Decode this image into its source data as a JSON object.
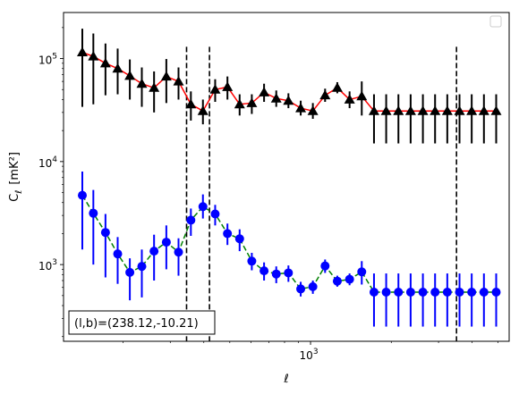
{
  "chart_data": {
    "type": "scatter",
    "title": "",
    "xlabel": "ℓ",
    "ylabel_main": "C",
    "ylabel_sub": "ℓ",
    "ylabel_unit": "[mK²]",
    "xscale": "log",
    "yscale": "log",
    "xlim": [
      120,
      5500
    ],
    "ylim": [
      180,
      280000
    ],
    "x_tick_labels": [
      {
        "value": 1000,
        "base": "10",
        "exp": "3"
      }
    ],
    "y_tick_labels": [
      {
        "value": 1000,
        "base": "10",
        "exp": "3"
      },
      {
        "value": 10000,
        "base": "10",
        "exp": "4"
      },
      {
        "value": 100000,
        "base": "10",
        "exp": "5"
      }
    ],
    "legend": {
      "position": "top-right",
      "entries": []
    },
    "annotation": "(l,b)=(238.12,-10.21)",
    "vlines": [
      345,
      420,
      3500
    ],
    "series": [
      {
        "marker": "triangle",
        "marker_color": "#000000",
        "line_color": "#ff0000",
        "line_style": "solid",
        "errorbar_color": "#000000",
        "x": [
          141,
          155,
          172,
          191,
          212,
          235,
          261,
          290,
          322,
          358,
          397,
          441,
          490,
          544,
          604,
          671,
          745,
          827,
          919,
          1020,
          1133,
          1258,
          1398,
          1552,
          1724,
          1914,
          2126,
          2361,
          2623,
          2912,
          3234,
          3592,
          3988,
          4429,
          4920
        ],
        "y": [
          115000,
          105000,
          90000,
          80000,
          68000,
          57000,
          52000,
          67000,
          60000,
          36000,
          31000,
          50000,
          53000,
          36000,
          37000,
          47000,
          41000,
          39000,
          33000,
          31000,
          44000,
          52000,
          40000,
          43000,
          31000,
          31000,
          31000,
          31000,
          31000,
          31000,
          31000,
          31000,
          31000,
          31000,
          31000
        ],
        "y_low": [
          34000,
          36000,
          44000,
          45000,
          40000,
          34000,
          30000,
          37000,
          40000,
          25000,
          23000,
          38000,
          40000,
          28000,
          29000,
          38000,
          34000,
          33000,
          28000,
          26000,
          38000,
          46000,
          33000,
          28000,
          15000,
          15000,
          15000,
          15000,
          15000,
          15000,
          15000,
          15000,
          15000,
          15000,
          15000
        ],
        "y_high": [
          195000,
          175000,
          140000,
          125000,
          98000,
          82000,
          75000,
          99000,
          82000,
          48000,
          40000,
          63000,
          67000,
          45000,
          45000,
          57000,
          49000,
          46000,
          39000,
          37000,
          51000,
          59000,
          48000,
          60000,
          45000,
          45000,
          45000,
          45000,
          45000,
          45000,
          45000,
          45000,
          45000,
          45000,
          45000
        ]
      },
      {
        "marker": "circle",
        "marker_color": "#0000ff",
        "line_color": "#008000",
        "line_style": "dashed",
        "errorbar_color": "#0000ff",
        "x": [
          141,
          155,
          172,
          191,
          212,
          235,
          261,
          290,
          322,
          358,
          397,
          441,
          490,
          544,
          604,
          671,
          745,
          827,
          919,
          1020,
          1133,
          1258,
          1398,
          1552,
          1724,
          1914,
          2126,
          2361,
          2623,
          2912,
          3234,
          3592,
          3988,
          4429,
          4920
        ],
        "y": [
          4700,
          3150,
          2050,
          1270,
          840,
          960,
          1350,
          1650,
          1320,
          2700,
          3650,
          3100,
          2000,
          1780,
          1080,
          870,
          810,
          830,
          580,
          610,
          970,
          690,
          720,
          850,
          540,
          540,
          540,
          540,
          540,
          540,
          540,
          540,
          540,
          540,
          540
        ],
        "y_low": [
          1400,
          1000,
          750,
          650,
          450,
          480,
          700,
          900,
          780,
          1900,
          2800,
          2400,
          1550,
          1350,
          880,
          700,
          660,
          680,
          490,
          520,
          830,
          610,
          630,
          640,
          250,
          250,
          250,
          250,
          250,
          250,
          250,
          250,
          250,
          250,
          250
        ],
        "y_high": [
          8000,
          5300,
          3100,
          1850,
          1150,
          1400,
          1950,
          2400,
          1800,
          3500,
          4800,
          3800,
          2500,
          2200,
          1300,
          1050,
          960,
          980,
          680,
          700,
          1120,
          780,
          820,
          1080,
          820,
          820,
          820,
          820,
          820,
          820,
          820,
          820,
          820,
          820,
          820
        ]
      }
    ]
  }
}
